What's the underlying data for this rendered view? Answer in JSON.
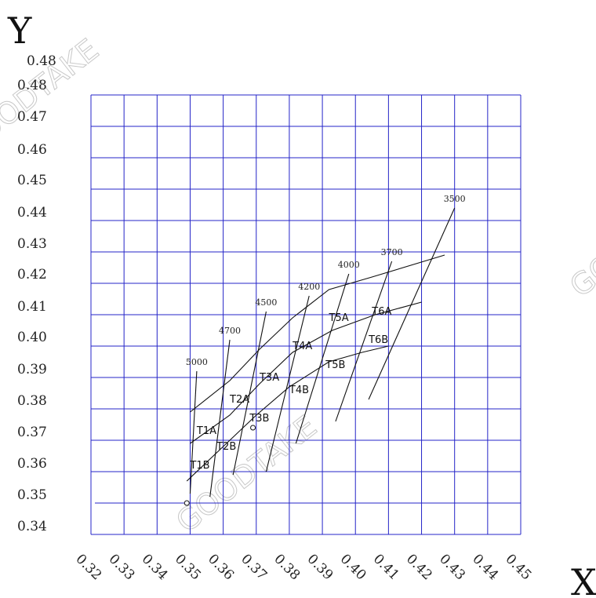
{
  "chart_data": {
    "type": "scatter",
    "title": "",
    "xlabel": "X",
    "ylabel": "Y",
    "xlim": [
      0.32,
      0.45
    ],
    "ylim": [
      0.34,
      0.48
    ],
    "grid": true,
    "x_ticks": [
      "0.32",
      "0.33",
      "0.34",
      "0.35",
      "0.36",
      "0.37",
      "0.38",
      "0.39",
      "0.40",
      "0.41",
      "0.42",
      "0.43",
      "0.44",
      "0.45"
    ],
    "y_tick_labels": [
      "0.48",
      "0.48",
      "0.47",
      "0.46",
      "0.45",
      "0.44",
      "0.43",
      "0.42",
      "0.41",
      "0.40",
      "0.39",
      "0.38",
      "0.37",
      "0.36",
      "0.35",
      "0.34"
    ],
    "cct_labels": [
      "5000",
      "4700",
      "4500",
      "4200",
      "4000",
      "3700",
      "3500"
    ],
    "cct_lines": [
      {
        "name": "5000",
        "points": [
          [
            0.35,
            0.353
          ],
          [
            0.352,
            0.392
          ]
        ]
      },
      {
        "name": "4700",
        "points": [
          [
            0.356,
            0.352
          ],
          [
            0.362,
            0.402
          ]
        ]
      },
      {
        "name": "4500",
        "points": [
          [
            0.363,
            0.359
          ],
          [
            0.373,
            0.411
          ]
        ]
      },
      {
        "name": "4200",
        "points": [
          [
            0.373,
            0.36
          ],
          [
            0.386,
            0.416
          ]
        ]
      },
      {
        "name": "4000",
        "points": [
          [
            0.382,
            0.369
          ],
          [
            0.398,
            0.423
          ]
        ]
      },
      {
        "name": "3700",
        "points": [
          [
            0.394,
            0.376
          ],
          [
            0.411,
            0.427
          ]
        ]
      },
      {
        "name": "3500",
        "points": [
          [
            0.404,
            0.383
          ],
          [
            0.43,
            0.444
          ]
        ]
      }
    ],
    "boundary_lines": [
      {
        "points": [
          [
            0.35,
            0.379
          ],
          [
            0.362,
            0.389
          ],
          [
            0.371,
            0.399
          ],
          [
            0.381,
            0.409
          ],
          [
            0.392,
            0.418
          ],
          [
            0.405,
            0.422
          ],
          [
            0.427,
            0.429
          ]
        ]
      },
      {
        "points": [
          [
            0.35,
            0.369
          ],
          [
            0.362,
            0.378
          ],
          [
            0.371,
            0.388
          ],
          [
            0.381,
            0.398
          ],
          [
            0.393,
            0.405
          ],
          [
            0.406,
            0.41
          ],
          [
            0.42,
            0.414
          ]
        ]
      },
      {
        "points": [
          [
            0.349,
            0.357
          ],
          [
            0.36,
            0.368
          ],
          [
            0.37,
            0.378
          ],
          [
            0.38,
            0.387
          ],
          [
            0.392,
            0.395
          ],
          [
            0.402,
            0.398
          ],
          [
            0.41,
            0.4
          ]
        ]
      }
    ],
    "regions": [
      {
        "label": "T1A",
        "x": 0.352,
        "y": 0.372
      },
      {
        "label": "T1B",
        "x": 0.35,
        "y": 0.361
      },
      {
        "label": "T2A",
        "x": 0.362,
        "y": 0.382
      },
      {
        "label": "T2B",
        "x": 0.358,
        "y": 0.367
      },
      {
        "label": "T3A",
        "x": 0.371,
        "y": 0.389
      },
      {
        "label": "T3B",
        "x": 0.368,
        "y": 0.376
      },
      {
        "label": "T4A",
        "x": 0.381,
        "y": 0.399
      },
      {
        "label": "T4B",
        "x": 0.38,
        "y": 0.385
      },
      {
        "label": "T5A",
        "x": 0.392,
        "y": 0.408
      },
      {
        "label": "T5B",
        "x": 0.391,
        "y": 0.393
      },
      {
        "label": "T6A",
        "x": 0.405,
        "y": 0.41
      },
      {
        "label": "T6B",
        "x": 0.404,
        "y": 0.401
      }
    ],
    "markers": [
      {
        "x": 0.349,
        "y": 0.35
      },
      {
        "x": 0.369,
        "y": 0.374
      }
    ],
    "watermark": "GOODTAKE"
  }
}
